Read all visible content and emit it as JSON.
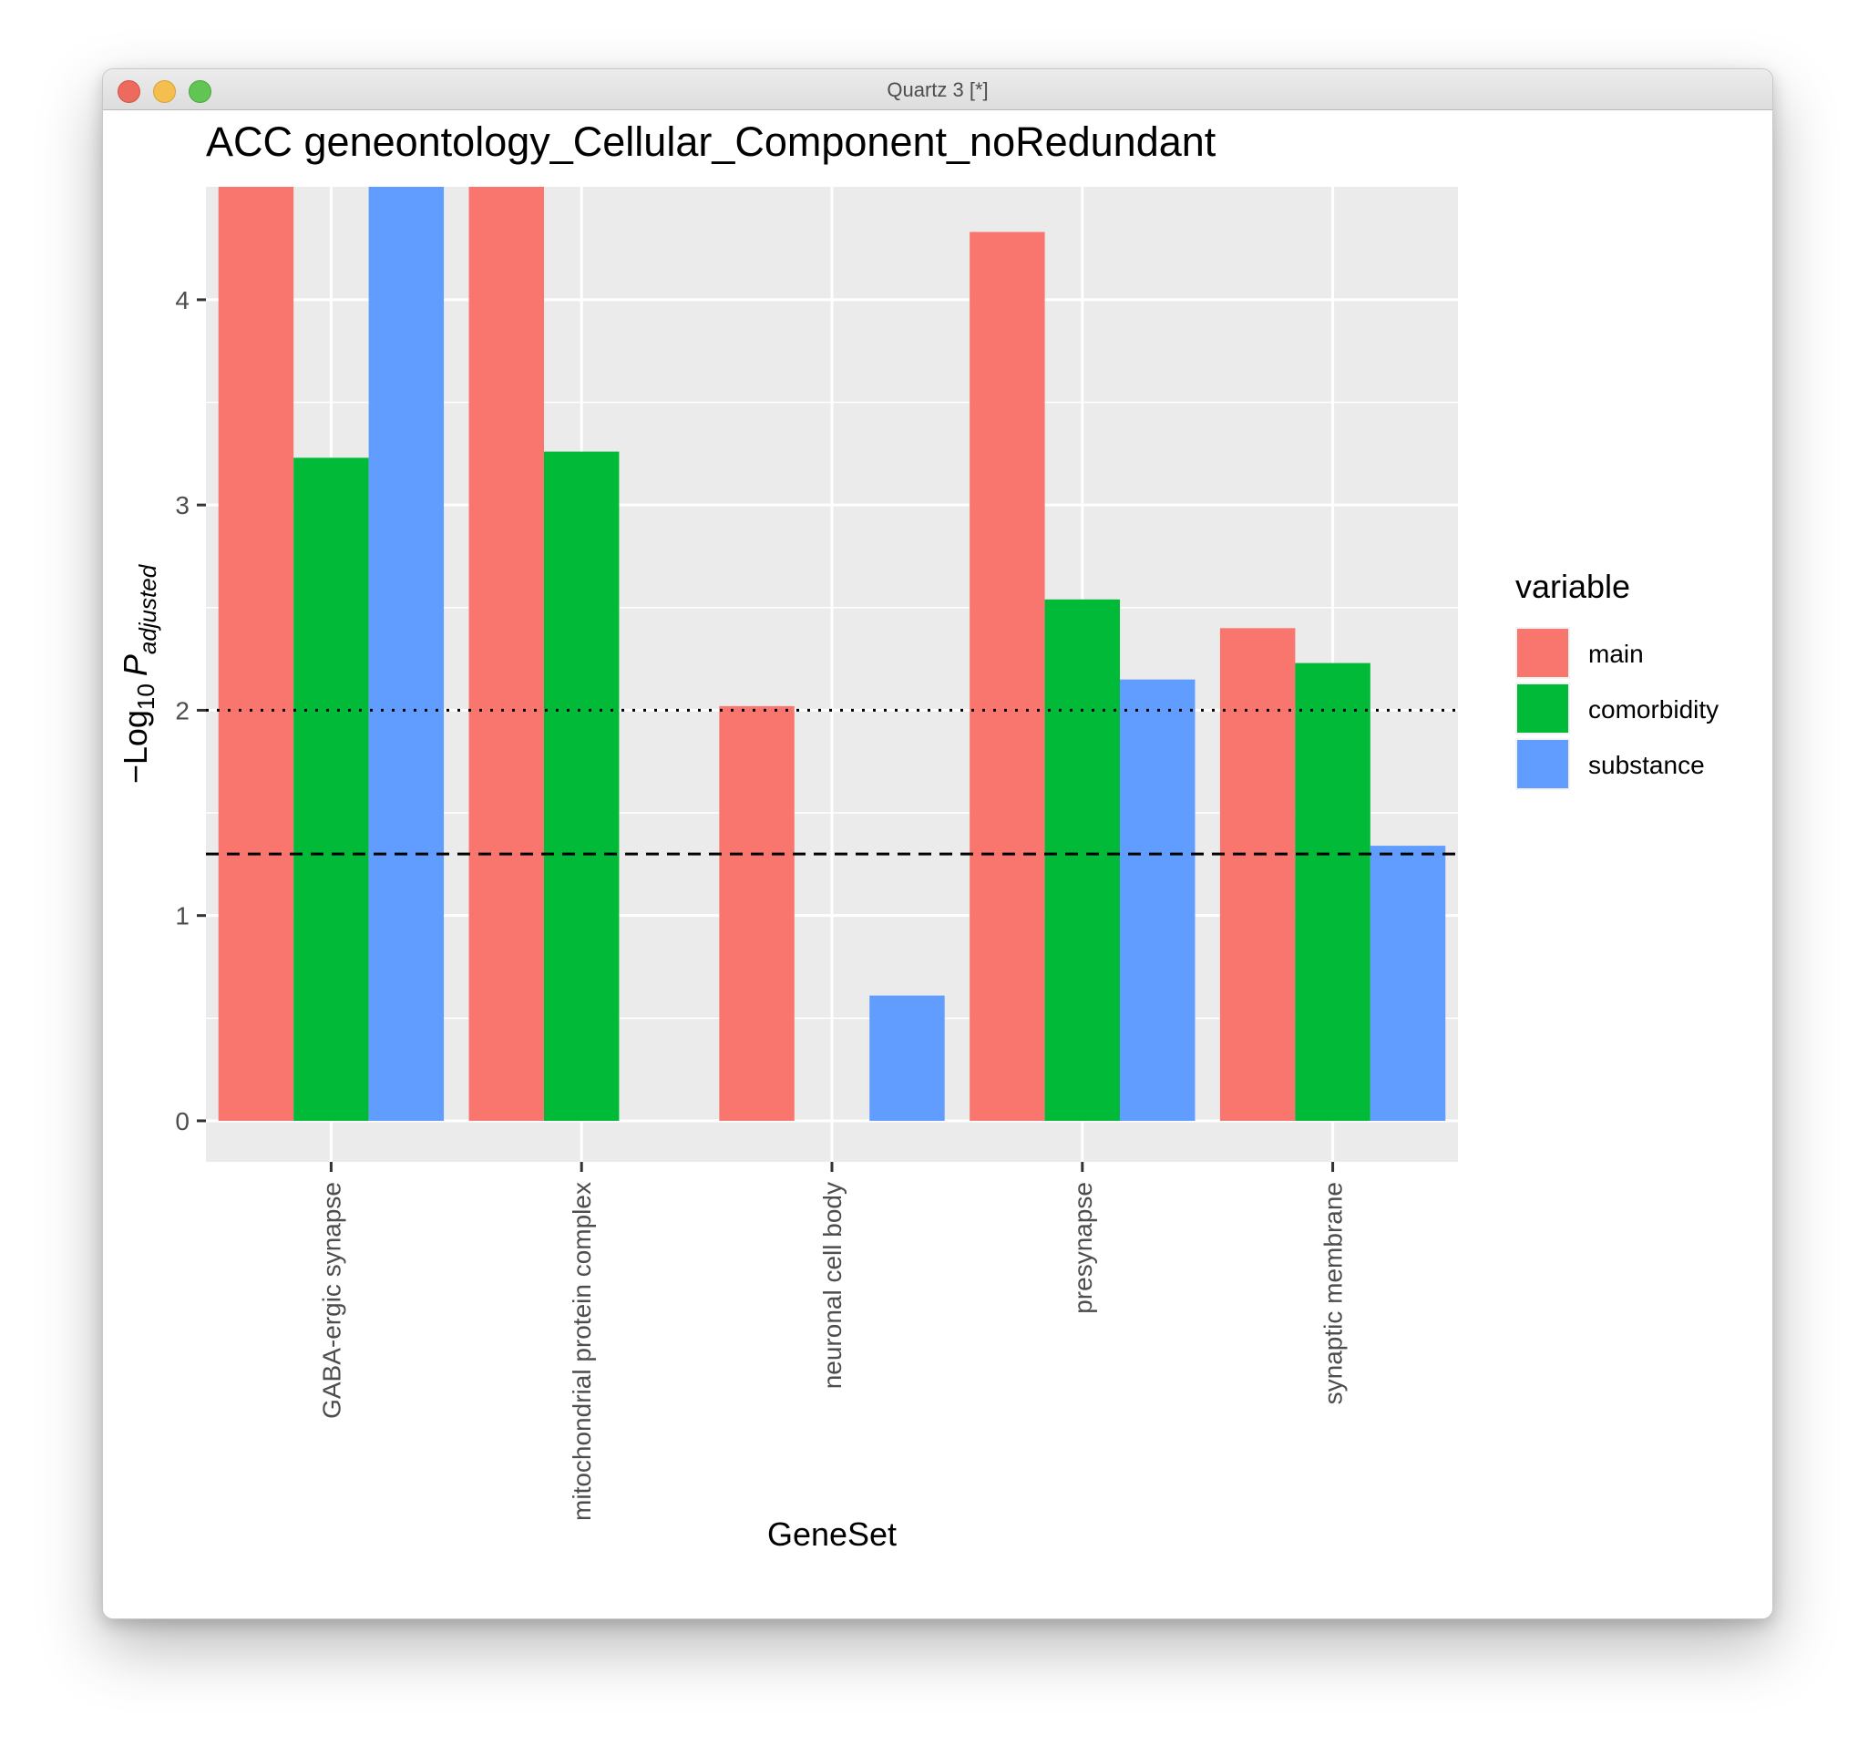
{
  "window": {
    "title": "Quartz 3 [*]"
  },
  "chart_data": {
    "type": "bar",
    "title": "ACC geneontology_Cellular_Component_noRedundant",
    "xlabel": "GeneSet",
    "ylabel": "−Log10 P adjusted",
    "ylim": [
      -0.2,
      4.55
    ],
    "yticks": [
      0,
      1,
      2,
      3,
      4
    ],
    "categories": [
      "GABA-ergic synapse",
      "mitochondrial protein complex",
      "neuronal cell body",
      "presynapse",
      "synaptic membrane"
    ],
    "series": [
      {
        "name": "main",
        "color": "#F8766D",
        "values": [
          4.55,
          4.55,
          2.02,
          4.33,
          2.4
        ]
      },
      {
        "name": "comorbidity",
        "color": "#00BA38",
        "values": [
          3.23,
          3.26,
          0,
          2.54,
          2.23
        ]
      },
      {
        "name": "substance",
        "color": "#619CFF",
        "values": [
          4.55,
          0,
          0.61,
          2.15,
          1.34
        ]
      }
    ],
    "reference_lines": [
      {
        "y": 2,
        "style": "dotted"
      },
      {
        "y": 1.3,
        "style": "dashed"
      }
    ],
    "legend": {
      "title": "variable",
      "position": "right"
    },
    "grid": true
  }
}
